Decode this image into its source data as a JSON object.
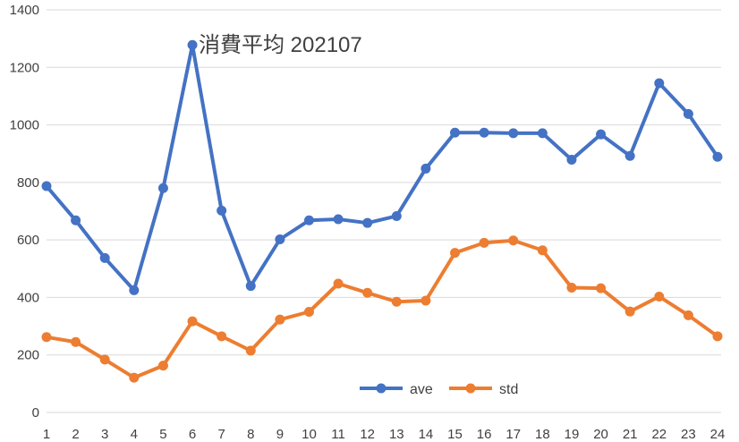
{
  "chart_data": {
    "type": "line",
    "title": "消費平均 202107",
    "xlabel": "",
    "ylabel": "",
    "ylim": [
      0,
      1400
    ],
    "yticks": [
      0,
      200,
      400,
      600,
      800,
      1000,
      1200,
      1400
    ],
    "x": [
      1,
      2,
      3,
      4,
      5,
      6,
      7,
      8,
      9,
      10,
      11,
      12,
      13,
      14,
      15,
      16,
      17,
      18,
      19,
      20,
      21,
      22,
      23,
      24
    ],
    "grid": true,
    "legend": "bottom-center",
    "series": [
      {
        "name": "ave",
        "color": "#4472C4",
        "values": [
          787,
          668,
          537,
          425,
          780,
          1278,
          702,
          440,
          602,
          668,
          672,
          659,
          683,
          848,
          973,
          973,
          971,
          971,
          879,
          967,
          892,
          1145,
          1038,
          889
        ]
      },
      {
        "name": "std",
        "color": "#ED7D31",
        "values": [
          262,
          245,
          184,
          121,
          163,
          317,
          265,
          215,
          323,
          350,
          448,
          416,
          385,
          389,
          555,
          590,
          598,
          564,
          434,
          432,
          351,
          403,
          338,
          265
        ]
      }
    ]
  }
}
